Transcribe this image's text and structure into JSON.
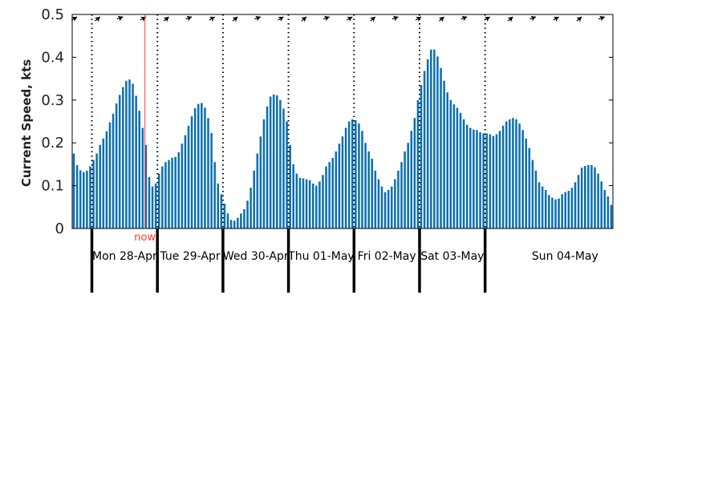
{
  "chart_data": {
    "type": "bar",
    "ylabel": "Current Speed, kts",
    "ylim": [
      0,
      0.5
    ],
    "yticks": [
      "0",
      "0.1",
      "0.2",
      "0.3",
      "0.4",
      "0.5"
    ],
    "bar_color": "#0b6fb0",
    "now_color": "#ff3b30",
    "now_label": "now",
    "now_index": 21.7,
    "grid": "dotted vertical lines at day boundaries",
    "day_labels": [
      "Mon 28-Apr",
      "Tue 29-Apr",
      "Wed 30-Apr",
      "Thu 01-May",
      "Fri 02-May",
      "Sat 03-May",
      "Sun 04-May"
    ],
    "day_boundaries": [
      5.5,
      25.5,
      45.5,
      65.5,
      85.5,
      105.5,
      125.5
    ],
    "values": [
      0.175,
      0.148,
      0.136,
      0.132,
      0.135,
      0.145,
      0.16,
      0.175,
      0.195,
      0.21,
      0.227,
      0.248,
      0.268,
      0.292,
      0.312,
      0.33,
      0.345,
      0.348,
      0.338,
      0.31,
      0.275,
      0.235,
      0.195,
      0.12,
      0.098,
      0.105,
      0.128,
      0.145,
      0.155,
      0.16,
      0.165,
      0.167,
      0.178,
      0.198,
      0.218,
      0.24,
      0.262,
      0.281,
      0.291,
      0.293,
      0.282,
      0.258,
      0.223,
      0.155,
      0.105,
      0.08,
      0.058,
      0.035,
      0.02,
      0.018,
      0.025,
      0.035,
      0.045,
      0.065,
      0.095,
      0.135,
      0.175,
      0.215,
      0.255,
      0.285,
      0.308,
      0.313,
      0.311,
      0.3,
      0.28,
      0.25,
      0.195,
      0.15,
      0.128,
      0.118,
      0.117,
      0.115,
      0.113,
      0.105,
      0.1,
      0.11,
      0.125,
      0.145,
      0.155,
      0.165,
      0.18,
      0.198,
      0.215,
      0.235,
      0.25,
      0.255,
      0.253,
      0.245,
      0.228,
      0.2,
      0.18,
      0.163,
      0.135,
      0.115,
      0.098,
      0.085,
      0.09,
      0.098,
      0.115,
      0.135,
      0.155,
      0.18,
      0.2,
      0.228,
      0.258,
      0.3,
      0.335,
      0.368,
      0.395,
      0.418,
      0.418,
      0.402,
      0.375,
      0.345,
      0.318,
      0.3,
      0.29,
      0.282,
      0.27,
      0.255,
      0.242,
      0.235,
      0.231,
      0.23,
      0.225,
      0.222,
      0.222,
      0.22,
      0.216,
      0.22,
      0.228,
      0.24,
      0.25,
      0.255,
      0.258,
      0.255,
      0.245,
      0.23,
      0.21,
      0.188,
      0.16,
      0.135,
      0.108,
      0.098,
      0.09,
      0.078,
      0.072,
      0.068,
      0.07,
      0.08,
      0.085,
      0.088,
      0.095,
      0.108,
      0.125,
      0.142,
      0.146,
      0.148,
      0.148,
      0.143,
      0.128,
      0.11,
      0.09,
      0.075,
      0.055
    ]
  }
}
